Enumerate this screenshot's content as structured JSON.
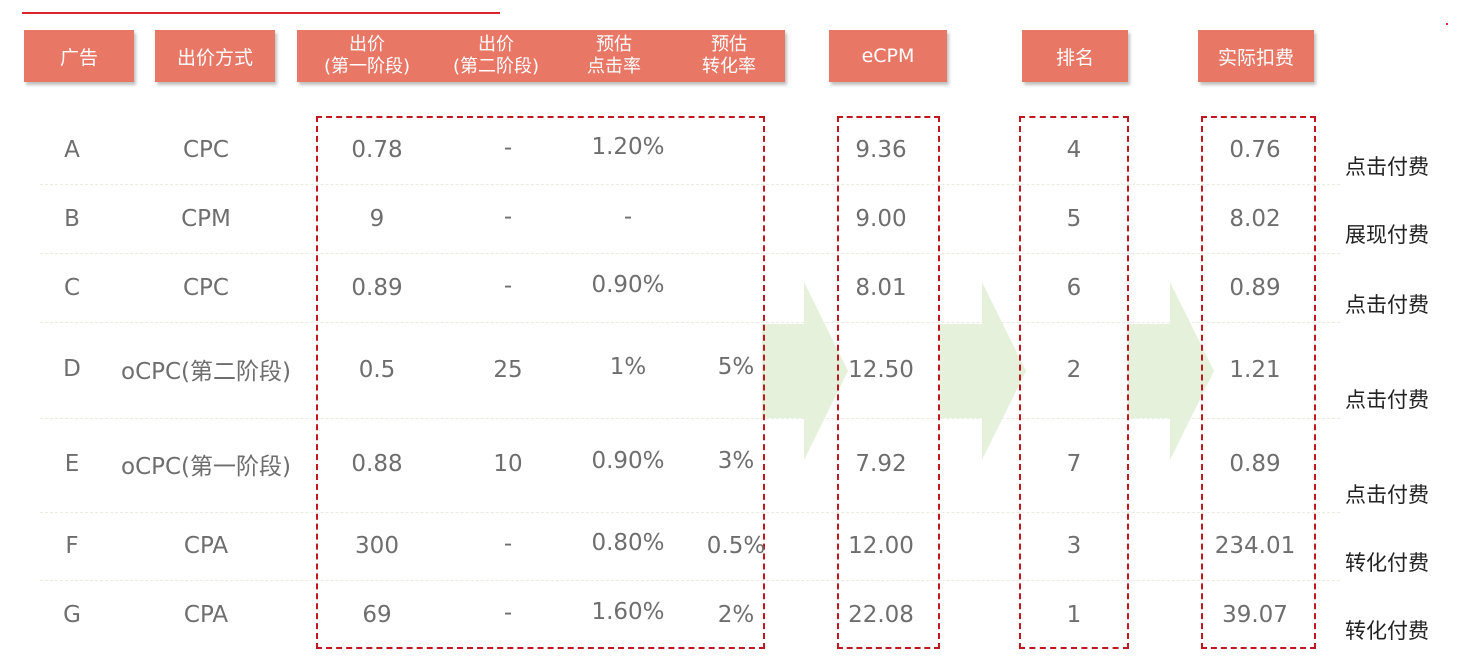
{
  "headers": {
    "ad": "广告",
    "bid_method": "出价方式",
    "bid_stage1": [
      "出价",
      "(第一阶段)"
    ],
    "bid_stage2": [
      "出价",
      "(第二阶段)"
    ],
    "ctr": [
      "预估",
      "点击率"
    ],
    "cvr": [
      "预估",
      "转化率"
    ],
    "ecpm": "eCPM",
    "rank": "排名",
    "charge": "实际扣费"
  },
  "rows": [
    {
      "ad": "A",
      "method": "CPC",
      "bid1": "0.78",
      "bid2": "-",
      "ctr": "1.20%",
      "cvr": "",
      "ecpm": "9.36",
      "rank": "4",
      "charge": "0.76",
      "pay": "点击付费"
    },
    {
      "ad": "B",
      "method": "CPM",
      "bid1": "9",
      "bid2": "-",
      "ctr": "-",
      "cvr": "",
      "ecpm": "9.00",
      "rank": "5",
      "charge": "8.02",
      "pay": "展现付费"
    },
    {
      "ad": "C",
      "method": "CPC",
      "bid1": "0.89",
      "bid2": "-",
      "ctr": "0.90%",
      "cvr": "",
      "ecpm": "8.01",
      "rank": "6",
      "charge": "0.89",
      "pay": "点击付费"
    },
    {
      "ad": "D",
      "method": "oCPC(第二阶段)",
      "bid1": "0.5",
      "bid2": "25",
      "ctr": "1%",
      "cvr": "5%",
      "ecpm": "12.50",
      "rank": "2",
      "charge": "1.21",
      "pay": "点击付费"
    },
    {
      "ad": "E",
      "method": "oCPC(第一阶段)",
      "bid1": "0.88",
      "bid2": "10",
      "ctr": "0.90%",
      "cvr": "3%",
      "ecpm": "7.92",
      "rank": "7",
      "charge": "0.89",
      "pay": "点击付费"
    },
    {
      "ad": "F",
      "method": "CPA",
      "bid1": "300",
      "bid2": "-",
      "ctr": "0.80%",
      "cvr": "0.5%",
      "ecpm": "12.00",
      "rank": "3",
      "charge": "234.01",
      "pay": "转化付费"
    },
    {
      "ad": "G",
      "method": "CPA",
      "bid1": "69",
      "bid2": "-",
      "ctr": "1.60%",
      "cvr": "2%",
      "ecpm": "22.08",
      "rank": "1",
      "charge": "39.07",
      "pay": "转化付费"
    }
  ],
  "colors": {
    "header_bg": "#e97766",
    "dash_border": "#c0181f",
    "arrow_fill": "#e6f1dc",
    "accent_line": "#d9262c"
  }
}
